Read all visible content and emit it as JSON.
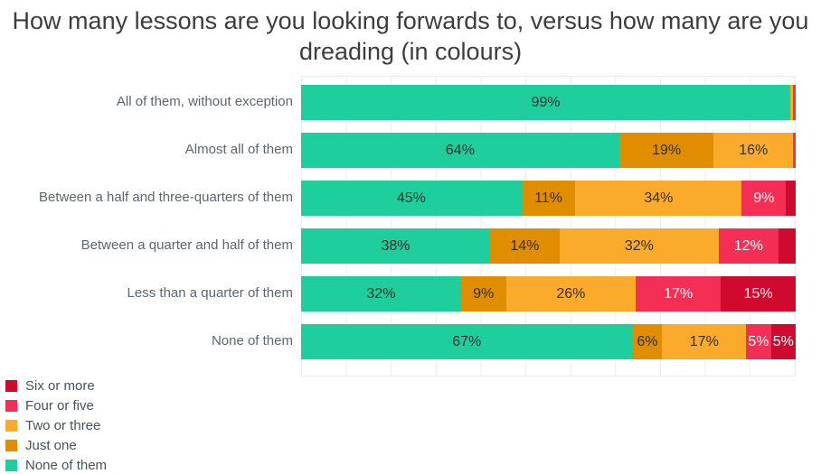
{
  "title": "How many lessons are you looking forwards to, versus how many are you dreading (in colours)",
  "colors": {
    "six_or_more": "#D00A2E",
    "four_or_five": "#F42E54",
    "two_or_three": "#FBAB2C",
    "just_one": "#E08E00",
    "none_of_them": "#1FCE9D",
    "label_dark": "#2E2E2E",
    "label_light": "#FFFFFF",
    "grid": "#ECECEC",
    "title_text": "#3D3D3D",
    "category_text": "#5C6670",
    "legend_text": "#46525C"
  },
  "light_text_keys": [
    "four_or_five",
    "six_or_more"
  ],
  "legend": [
    {
      "key": "six_or_more",
      "label": "Six or more"
    },
    {
      "key": "four_or_five",
      "label": "Four or five"
    },
    {
      "key": "two_or_three",
      "label": "Two or three"
    },
    {
      "key": "just_one",
      "label": "Just one"
    },
    {
      "key": "none_of_them",
      "label": "None of them"
    }
  ],
  "rows": [
    {
      "category": "All of them, without exception",
      "segments": [
        {
          "key": "none_of_them",
          "value": 99,
          "text": "99%"
        },
        {
          "key": "two_or_three",
          "value": 0.5,
          "text": ""
        },
        {
          "key": "four_or_five",
          "value": 0.6,
          "text": ""
        }
      ]
    },
    {
      "category": "Almost all of them",
      "segments": [
        {
          "key": "none_of_them",
          "value": 64,
          "text": "64%"
        },
        {
          "key": "just_one",
          "value": 19,
          "text": "19%"
        },
        {
          "key": "two_or_three",
          "value": 16,
          "text": "16%"
        },
        {
          "key": "four_or_five",
          "value": 0.5,
          "text": ""
        }
      ]
    },
    {
      "category": "Between a half and three-quarters of them",
      "segments": [
        {
          "key": "none_of_them",
          "value": 45,
          "text": "45%"
        },
        {
          "key": "just_one",
          "value": 11,
          "text": "11%"
        },
        {
          "key": "two_or_three",
          "value": 34,
          "text": "34%"
        },
        {
          "key": "four_or_five",
          "value": 9,
          "text": "9%"
        },
        {
          "key": "six_or_more",
          "value": 2,
          "text": ""
        }
      ]
    },
    {
      "category": "Between a quarter and half of them",
      "segments": [
        {
          "key": "none_of_them",
          "value": 38,
          "text": "38%"
        },
        {
          "key": "just_one",
          "value": 14,
          "text": "14%"
        },
        {
          "key": "two_or_three",
          "value": 32,
          "text": "32%"
        },
        {
          "key": "four_or_five",
          "value": 12,
          "text": "12%"
        },
        {
          "key": "six_or_more",
          "value": 3.5,
          "text": ""
        }
      ]
    },
    {
      "category": "Less than a quarter of them",
      "segments": [
        {
          "key": "none_of_them",
          "value": 32,
          "text": "32%"
        },
        {
          "key": "just_one",
          "value": 9,
          "text": "9%"
        },
        {
          "key": "two_or_three",
          "value": 26,
          "text": "26%"
        },
        {
          "key": "four_or_five",
          "value": 17,
          "text": "17%"
        },
        {
          "key": "six_or_more",
          "value": 15,
          "text": "15%"
        }
      ]
    },
    {
      "category": "None of them",
      "segments": [
        {
          "key": "none_of_them",
          "value": 67,
          "text": "67%"
        },
        {
          "key": "just_one",
          "value": 6,
          "text": "6%"
        },
        {
          "key": "two_or_three",
          "value": 17,
          "text": "17%"
        },
        {
          "key": "four_or_five",
          "value": 5,
          "text": "5%"
        },
        {
          "key": "six_or_more",
          "value": 5,
          "text": "5%"
        }
      ]
    }
  ],
  "chart_data": {
    "type": "bar",
    "orientation": "horizontal",
    "stacked": true,
    "title": "How many lessons are you looking forwards to, versus how many are you dreading (in colours)",
    "categories": [
      "All of them, without exception",
      "Almost all of them",
      "Between a half and three-quarters of them",
      "Between a quarter and half of them",
      "Less than a quarter of them",
      "None of them"
    ],
    "series": [
      {
        "name": "None of them",
        "color": "#1FCE9D",
        "values": [
          99,
          64,
          45,
          38,
          32,
          67
        ]
      },
      {
        "name": "Just one",
        "color": "#E08E00",
        "values": [
          0,
          19,
          11,
          14,
          9,
          6
        ]
      },
      {
        "name": "Two or three",
        "color": "#FBAB2C",
        "values": [
          0.5,
          16,
          34,
          32,
          26,
          17
        ]
      },
      {
        "name": "Four or five",
        "color": "#F42E54",
        "values": [
          0.6,
          0.5,
          9,
          12,
          17,
          5
        ]
      },
      {
        "name": "Six or more",
        "color": "#D00A2E",
        "values": [
          0,
          0,
          2,
          3.5,
          15,
          5
        ]
      }
    ],
    "unit": "%",
    "xlim": [
      0,
      100
    ],
    "grid": "faint vertical gridlines and row boundary lines, no axis tick labels",
    "legend_position": "bottom-left",
    "bar_label_rule": "segments of roughly 5% or more show their value as a % label; labels are dark on teal/orange segments and white on pink/red segments"
  }
}
